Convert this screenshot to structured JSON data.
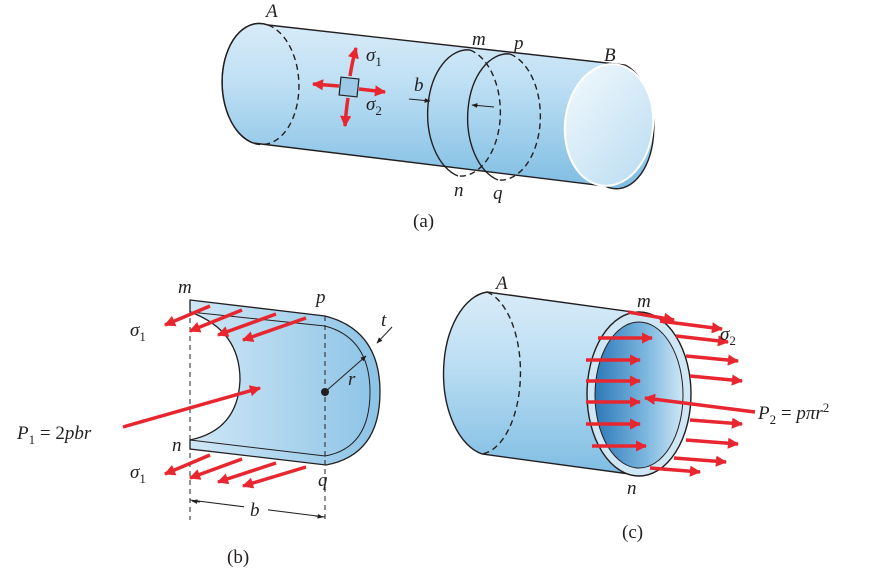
{
  "colors": {
    "arrow": "#e8262f",
    "outline": "#231f20",
    "cyl_light": "#eaf4fb",
    "cyl_mid": "#b7d9ef",
    "cyl_dark": "#6fb3dc"
  },
  "panel_a": {
    "label_A": "A",
    "label_B": "B",
    "label_m": "m",
    "label_p": "p",
    "label_n": "n",
    "label_q": "q",
    "label_b": "b",
    "sigma": "σ",
    "sub1": "1",
    "sub2": "2",
    "caption": "(a)"
  },
  "panel_b": {
    "label_m": "m",
    "label_p": "p",
    "label_n": "n",
    "label_q": "q",
    "label_t": "t",
    "label_r": "r",
    "label_b": "b",
    "sigma": "σ",
    "sub1": "1",
    "P_symbol": "P",
    "P_sub": "1",
    "P_rhs": " = 2",
    "P_tail": "pbr",
    "caption": "(b)"
  },
  "panel_c": {
    "label_A": "A",
    "label_m": "m",
    "label_n": "n",
    "sigma": "σ",
    "sub2": "2",
    "P_symbol": "P",
    "P_sub": "2",
    "P_rhs": " = ",
    "P_tail": "pπr",
    "P_sup": "2",
    "caption": "(c)"
  }
}
